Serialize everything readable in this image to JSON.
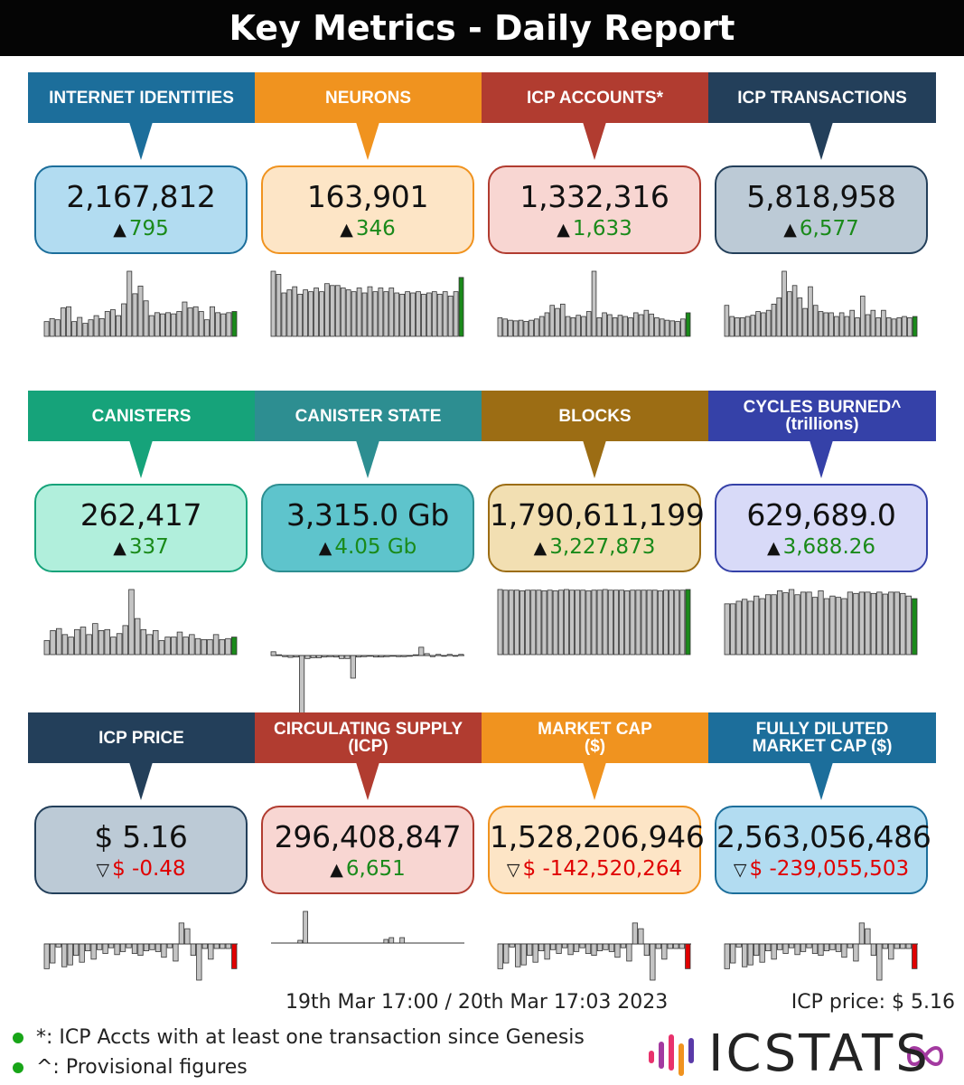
{
  "title": "Key Metrics - Daily Report",
  "colors": {
    "bar_fill": "#c4c4c4",
    "bar_stroke": "#333333",
    "up_bar": "#1a8a1a",
    "down_bar": "#e00000"
  },
  "metrics": [
    {
      "label": "INTERNET IDENTITIES",
      "sublabel": "",
      "value": "2,167,812",
      "change": "795",
      "direction": "up",
      "banner_color": "#1c6e9b",
      "box_bg": "#b2dcf1",
      "box_border": "#1c6e9b"
    },
    {
      "label": "NEURONS",
      "sublabel": "",
      "value": "163,901",
      "change": "346",
      "direction": "up",
      "banner_color": "#f0931f",
      "box_bg": "#fde5c6",
      "box_border": "#f0931f"
    },
    {
      "label": "ICP ACCOUNTS*",
      "sublabel": "",
      "value": "1,332,316",
      "change": "1,633",
      "direction": "up",
      "banner_color": "#b13c30",
      "box_bg": "#f8d6d2",
      "box_border": "#b13c30"
    },
    {
      "label": "ICP TRANSACTIONS",
      "sublabel": "",
      "value": "5,818,958",
      "change": "6,577",
      "direction": "up",
      "banner_color": "#233f5a",
      "box_bg": "#bccad6",
      "box_border": "#233f5a"
    },
    {
      "label": "CANISTERS",
      "sublabel": "",
      "value": "262,417",
      "change": "337",
      "direction": "up",
      "banner_color": "#16a37a",
      "box_bg": "#b1efdc",
      "box_border": "#16a37a"
    },
    {
      "label": "CANISTER STATE",
      "sublabel": "",
      "value": "3,315.0 Gb",
      "change": "4.05 Gb",
      "direction": "up",
      "banner_color": "#2d8e91",
      "box_bg": "#5ec4cc",
      "box_border": "#2d8e91"
    },
    {
      "label": "BLOCKS",
      "sublabel": "",
      "value": "1,790,611,199",
      "change": "3,227,873",
      "direction": "up",
      "banner_color": "#9c6d14",
      "box_bg": "#f2dfb2",
      "box_border": "#9c6d14"
    },
    {
      "label": "CYCLES BURNED^",
      "sublabel": "(trillions)",
      "value": "629,689.0",
      "change": "3,688.26",
      "direction": "up",
      "banner_color": "#3541a8",
      "box_bg": "#d8daf8",
      "box_border": "#3541a8"
    },
    {
      "label": "ICP PRICE",
      "sublabel": "",
      "value": "$ 5.16",
      "change": "$ -0.48",
      "direction": "down",
      "banner_color": "#233f5a",
      "box_bg": "#bccad6",
      "box_border": "#233f5a"
    },
    {
      "label": "CIRCULATING SUPPLY",
      "sublabel": "(ICP)",
      "value": "296,408,847",
      "change": "6,651",
      "direction": "up",
      "banner_color": "#b13c30",
      "box_bg": "#f8d6d2",
      "box_border": "#b13c30"
    },
    {
      "label": "MARKET CAP",
      "sublabel": "($)",
      "value": "1,528,206,946",
      "change": "$ -142,520,264",
      "direction": "down",
      "banner_color": "#f0931f",
      "box_bg": "#fde5c6",
      "box_border": "#f0931f"
    },
    {
      "label": "FULLY DILUTED",
      "sublabel": "MARKET CAP ($)",
      "value": "2,563,056,486",
      "change": "$ -239,055,503",
      "direction": "down",
      "banner_color": "#1c6e9b",
      "box_bg": "#b2dcf1",
      "box_border": "#1c6e9b"
    }
  ],
  "chart_data": [
    {
      "type": "bar",
      "metric": "INTERNET IDENTITIES",
      "values": [
        25,
        30,
        28,
        48,
        50,
        25,
        32,
        22,
        28,
        35,
        30,
        42,
        45,
        35,
        55,
        110,
        72,
        85,
        60,
        35,
        40,
        38,
        40,
        38,
        42,
        58,
        48,
        50,
        42,
        28,
        50,
        40,
        38,
        40,
        42
      ]
    },
    {
      "type": "bar",
      "metric": "NEURONS",
      "values": [
        105,
        100,
        70,
        75,
        80,
        68,
        75,
        72,
        78,
        72,
        85,
        82,
        82,
        78,
        75,
        72,
        78,
        70,
        80,
        72,
        78,
        72,
        78,
        70,
        68,
        72,
        70,
        72,
        68,
        70,
        72,
        68,
        72,
        65,
        72,
        95
      ]
    },
    {
      "type": "bar",
      "metric": "ICP ACCOUNTS*",
      "values": [
        30,
        28,
        26,
        25,
        26,
        24,
        26,
        28,
        32,
        38,
        50,
        45,
        52,
        32,
        30,
        34,
        32,
        40,
        105,
        30,
        38,
        35,
        30,
        34,
        32,
        30,
        38,
        35,
        42,
        36,
        30,
        28,
        26,
        25,
        24,
        28,
        38
      ]
    },
    {
      "type": "bar",
      "metric": "ICP TRANSACTIONS",
      "values": [
        50,
        32,
        30,
        30,
        32,
        34,
        40,
        38,
        42,
        52,
        62,
        105,
        72,
        82,
        62,
        45,
        80,
        50,
        40,
        38,
        38,
        32,
        38,
        32,
        42,
        30,
        65,
        35,
        42,
        30,
        42,
        30,
        28,
        30,
        32,
        30,
        32
      ]
    },
    {
      "type": "bar",
      "metric": "CANISTERS",
      "values": [
        28,
        48,
        52,
        40,
        35,
        50,
        55,
        40,
        62,
        48,
        50,
        35,
        42,
        58,
        130,
        72,
        50,
        40,
        48,
        28,
        35,
        35,
        45,
        35,
        40,
        32,
        30,
        30,
        40,
        30,
        32,
        35
      ]
    },
    {
      "type": "bar",
      "metric": "CANISTER STATE",
      "values": [
        10,
        2,
        -3,
        -5,
        -4,
        -180,
        -8,
        -6,
        -6,
        -4,
        -3,
        -4,
        -8,
        -8,
        -60,
        -4,
        -3,
        -2,
        -4,
        -4,
        -3,
        -2,
        -3,
        -3,
        -2,
        2,
        22,
        5,
        -3,
        3,
        -2,
        3,
        -2,
        3
      ]
    },
    {
      "type": "bar",
      "metric": "BLOCKS",
      "values": [
        100,
        99,
        99,
        99,
        98,
        99,
        99,
        99,
        98,
        99,
        98,
        99,
        100,
        99,
        99,
        99,
        98,
        99,
        99,
        100,
        99,
        99,
        99,
        98,
        99,
        99,
        99,
        99,
        99,
        98,
        99,
        99,
        99,
        99,
        100
      ]
    },
    {
      "type": "bar",
      "metric": "CYCLES BURNED^",
      "values": [
        78,
        78,
        82,
        85,
        82,
        90,
        86,
        92,
        92,
        98,
        95,
        100,
        92,
        96,
        96,
        88,
        98,
        86,
        90,
        88,
        86,
        96,
        94,
        96,
        96,
        94,
        96,
        93,
        96,
        96,
        94,
        90,
        86
      ]
    },
    {
      "type": "bar",
      "metric": "ICP PRICE",
      "values": [
        -65,
        -50,
        -8,
        -60,
        -55,
        -30,
        -48,
        -18,
        -40,
        -15,
        -25,
        -10,
        -28,
        -20,
        -10,
        -25,
        -30,
        -18,
        -15,
        -20,
        -35,
        -10,
        -45,
        55,
        40,
        -30,
        -95,
        -12,
        -40,
        -12,
        -12,
        -12,
        -65
      ]
    },
    {
      "type": "bar",
      "metric": "CIRCULATING SUPPLY",
      "values": [
        0,
        0,
        0,
        0,
        0,
        3,
        35,
        0,
        0,
        0,
        0,
        0,
        0,
        0,
        0,
        0,
        0,
        0,
        0,
        0,
        0,
        4,
        6,
        0,
        6,
        0,
        0,
        0,
        0,
        0,
        0,
        0,
        0,
        0,
        0,
        0
      ]
    },
    {
      "type": "bar",
      "metric": "MARKET CAP",
      "values": [
        -65,
        -50,
        -8,
        -60,
        -55,
        -30,
        -48,
        -18,
        -40,
        -15,
        -25,
        -10,
        -28,
        -20,
        -10,
        -25,
        -30,
        -18,
        -15,
        -20,
        -35,
        -10,
        -45,
        55,
        40,
        -30,
        -95,
        -12,
        -40,
        -12,
        -12,
        -12,
        -65
      ]
    },
    {
      "type": "bar",
      "metric": "FULLY DILUTED MARKET CAP ($)",
      "values": [
        -65,
        -50,
        -8,
        -60,
        -55,
        -30,
        -48,
        -18,
        -40,
        -15,
        -25,
        -10,
        -28,
        -20,
        -10,
        -25,
        -30,
        -18,
        -15,
        -20,
        -35,
        -10,
        -45,
        55,
        40,
        -30,
        -95,
        -12,
        -40,
        -12,
        -12,
        -12,
        -65
      ]
    }
  ],
  "footer": {
    "date_range": "19th Mar 17:00 / 20th Mar 17:03 2023",
    "icp_price": "ICP price: $ 5.16",
    "notes": [
      "*: ICP Accts with at least one transaction since Genesis",
      "^: Provisional figures"
    ],
    "logo_text": "ICSTATS"
  },
  "icons": {
    "up": "triangle-up",
    "down": "triangle-down-outline",
    "infinity": "infinity-icon"
  }
}
